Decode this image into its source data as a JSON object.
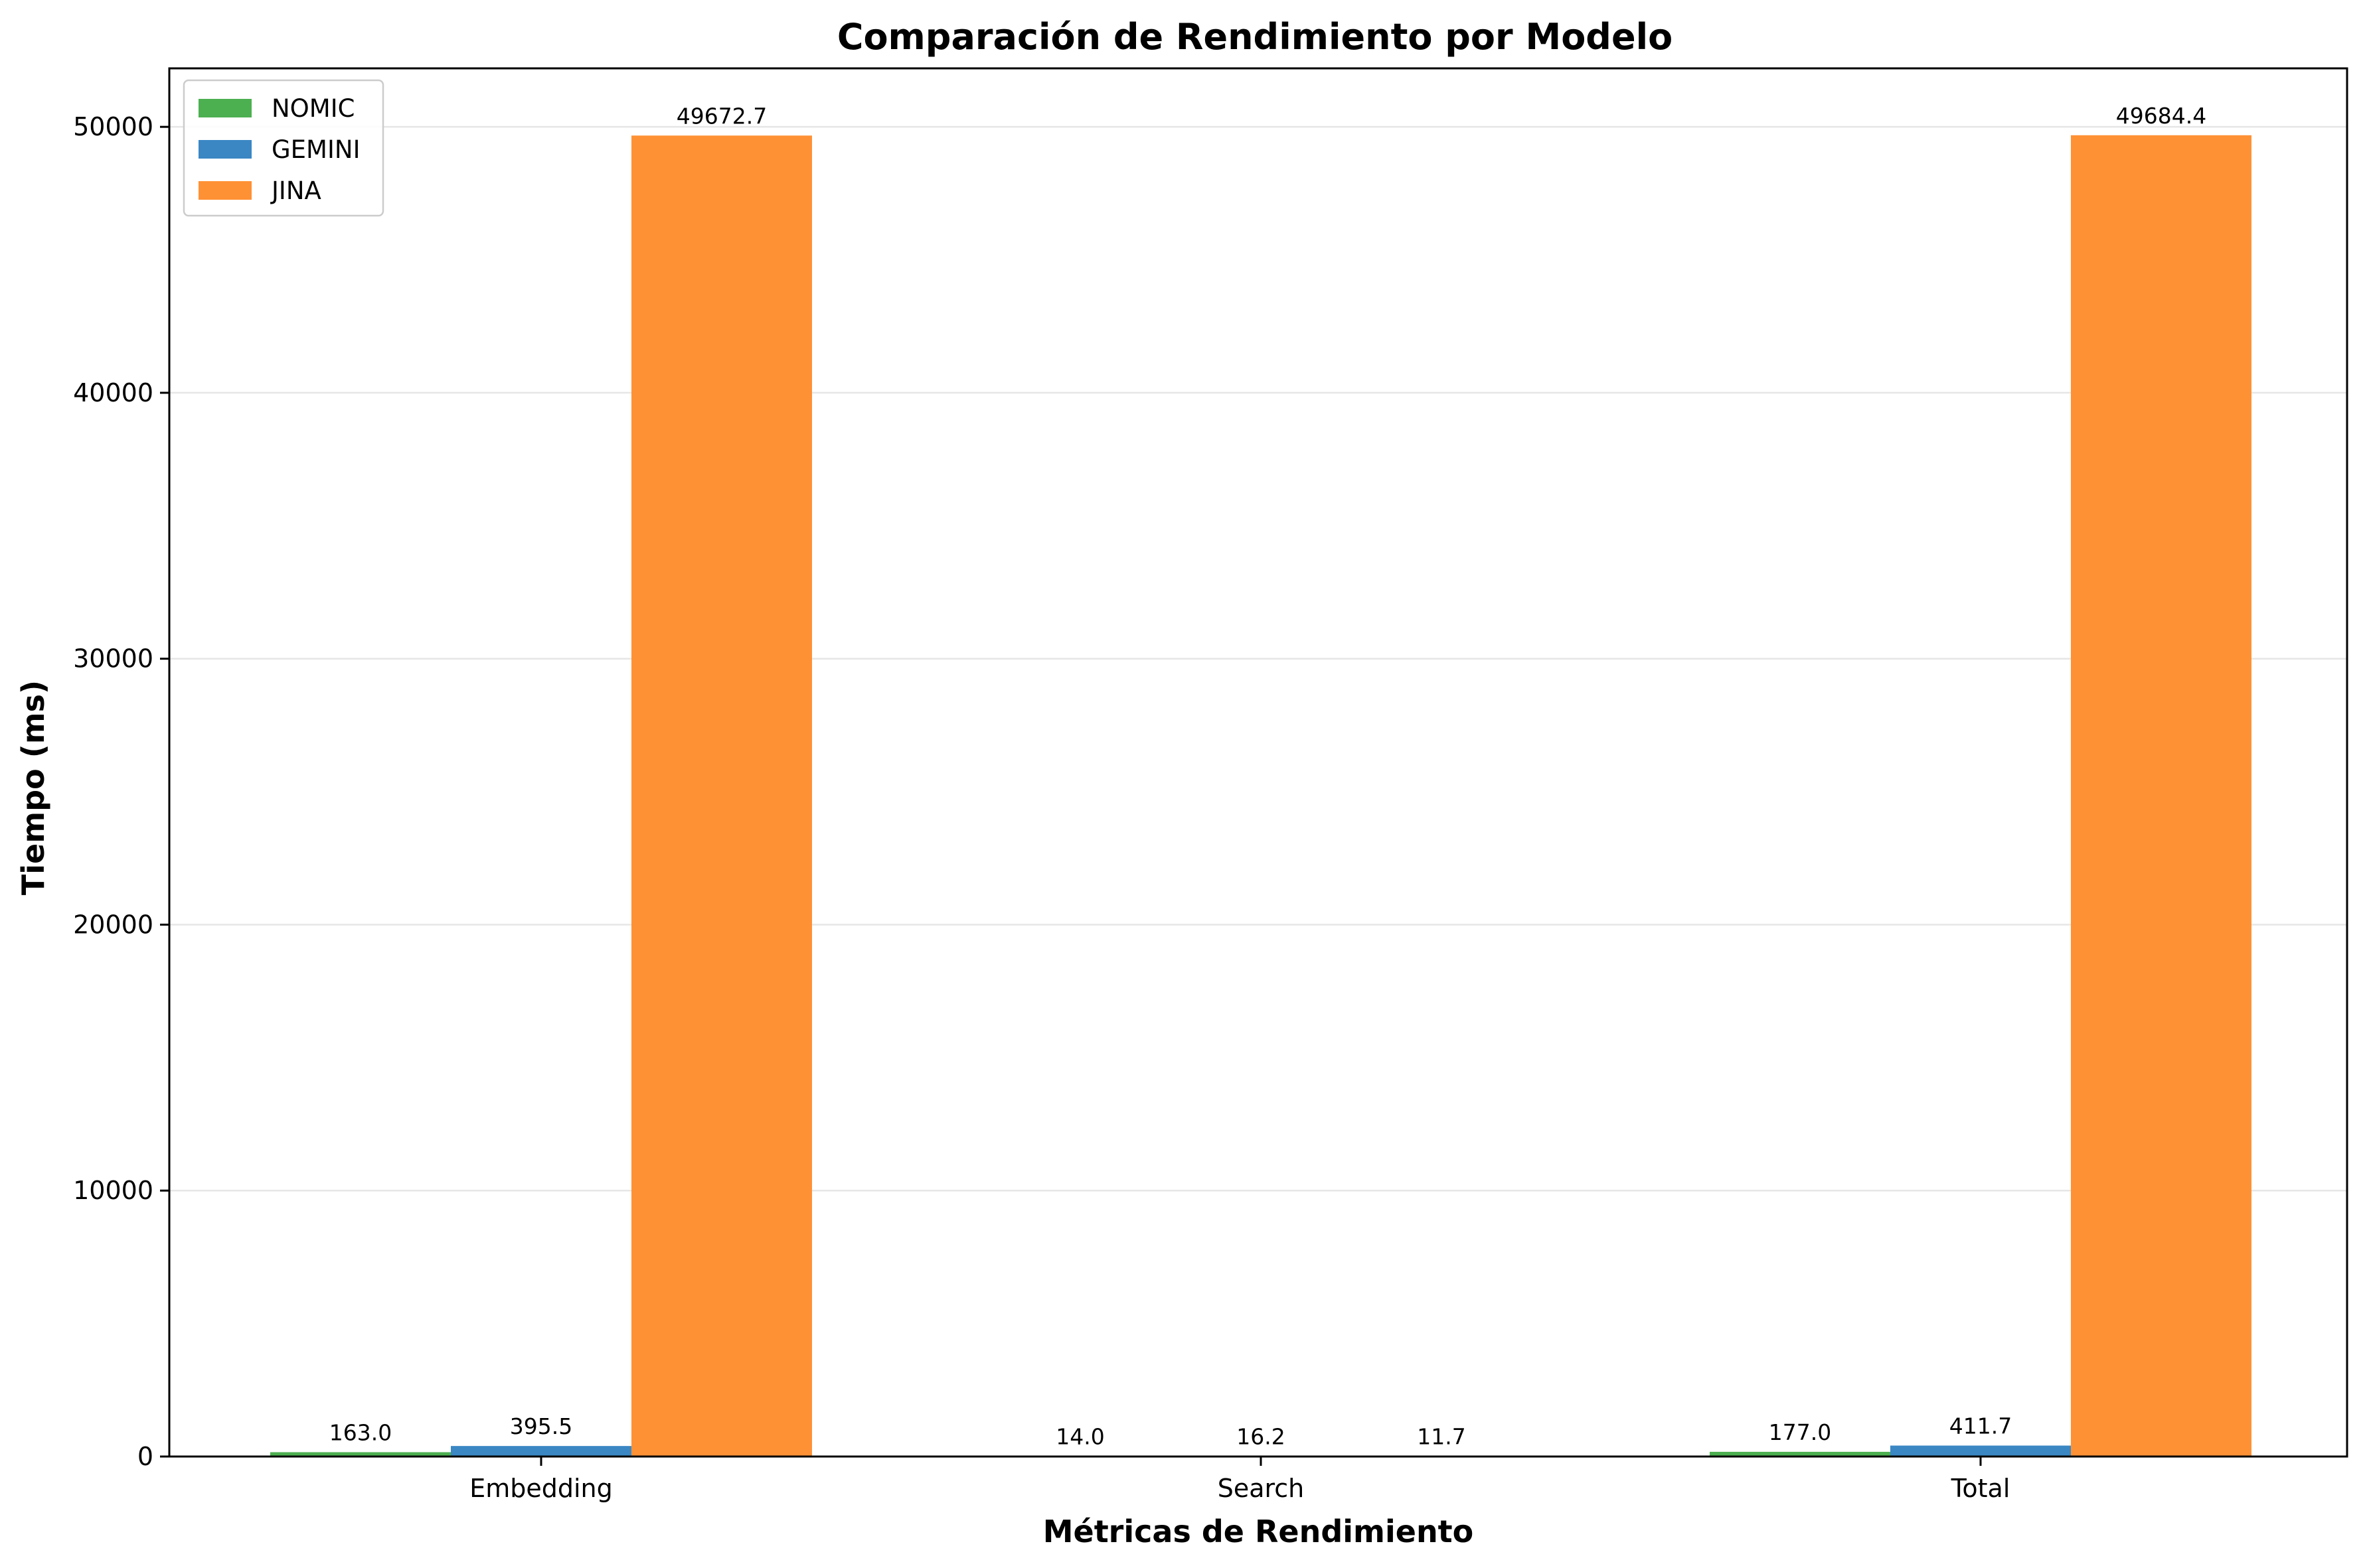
{
  "chart_data": {
    "type": "bar",
    "title": "Comparación de Rendimiento por Modelo",
    "xlabel": "Métricas de Rendimiento",
    "ylabel": "Tiempo (ms)",
    "categories": [
      "Embedding",
      "Search",
      "Total"
    ],
    "series": [
      {
        "name": "NOMIC",
        "color": "#4caf50",
        "values": [
          163.0,
          14.0,
          177.0
        ],
        "labels": [
          "163.0",
          "14.0",
          "177.0"
        ]
      },
      {
        "name": "GEMINI",
        "color": "#3a87c4",
        "values": [
          395.5,
          16.2,
          411.7
        ],
        "labels": [
          "395.5",
          "16.2",
          "411.7"
        ]
      },
      {
        "name": "JINA",
        "color": "#ff9135",
        "values": [
          49672.7,
          11.7,
          49684.4
        ],
        "labels": [
          "49672.7",
          "11.7",
          "49684.4"
        ]
      }
    ],
    "yticks": [
      0,
      10000,
      20000,
      30000,
      40000,
      50000
    ],
    "ylim": [
      0,
      52200
    ],
    "grid": "y",
    "legend": "top-left"
  }
}
